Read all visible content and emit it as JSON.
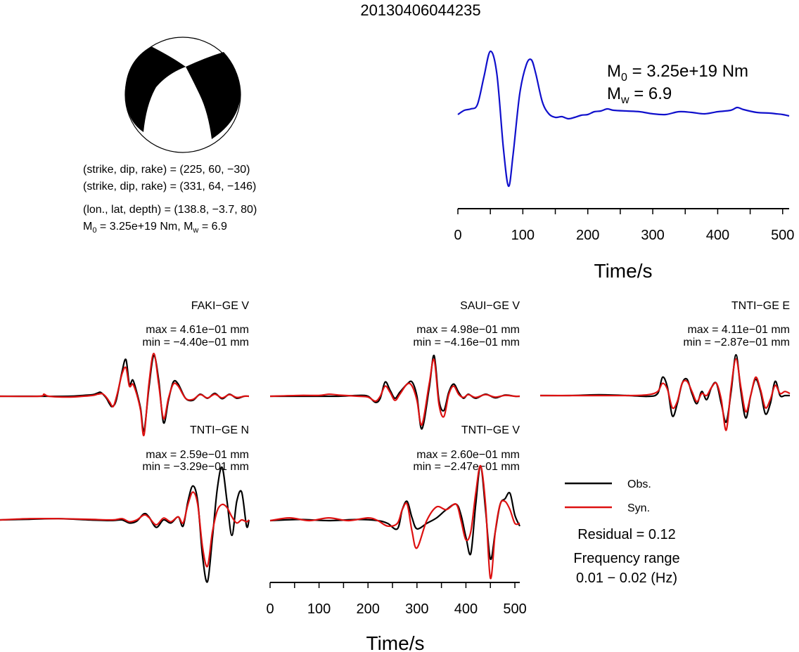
{
  "title": "20130406044235",
  "mechanism": {
    "line1": "(strike, dip, rake) = (225, 60, −30)",
    "line2": "(strike, dip, rake) = (331, 64, −146)",
    "line3": "(lon., lat, depth) = (138.8, −3.7, 80)",
    "line4_prefix": "M",
    "line4_sub0": "0",
    "line4_mid": " = 3.25e+19 Nm, M",
    "line4_subw": "w",
    "line4_suffix": " = 6.9"
  },
  "stf_labels": {
    "m0_main": "M",
    "m0_sub": "0",
    "m0_value": " = 3.25e+19 Nm",
    "mw_main": "M",
    "mw_sub": "w",
    "mw_value": " = 6.9"
  },
  "legend": {
    "obs": "Obs.",
    "syn": "Syn.",
    "residual": "Residual = 0.12",
    "freq_line1": "Frequency range",
    "freq_line2": "0.01 − 0.02 (Hz)"
  },
  "colors": {
    "obs": "#000000",
    "syn": "#dd1111",
    "stf": "#1010cc"
  },
  "chart_data": [
    {
      "type": "line",
      "name": "source-time-function",
      "xlabel": "Time/s",
      "ylabel": "",
      "xlim": [
        0,
        510
      ],
      "xticks": [
        0,
        100,
        200,
        300,
        400,
        500
      ],
      "series": [
        {
          "name": "",
          "color": "#1010cc",
          "x": [
            0,
            10,
            20,
            30,
            40,
            50,
            60,
            70,
            78,
            85,
            95,
            105,
            113,
            120,
            130,
            140,
            150,
            160,
            170,
            180,
            190,
            200,
            210,
            220,
            230,
            240,
            260,
            280,
            300,
            320,
            340,
            360,
            380,
            400,
            420,
            430,
            440,
            460,
            480,
            490,
            500,
            510
          ],
          "y": [
            0.02,
            0.08,
            0.1,
            0.16,
            0.55,
            0.92,
            0.6,
            -0.45,
            -1.0,
            -0.55,
            0.3,
            0.72,
            0.8,
            0.6,
            0.2,
            0.03,
            -0.02,
            -0.01,
            -0.04,
            -0.02,
            0.01,
            0.02,
            0.06,
            0.07,
            0.1,
            0.08,
            0.07,
            0.06,
            0.03,
            0.02,
            0.06,
            0.05,
            0.03,
            0.06,
            0.08,
            0.12,
            0.09,
            0.05,
            0.04,
            0.03,
            0.02,
            0.0
          ]
        }
      ]
    },
    {
      "type": "line",
      "name": "FAKI-GE V",
      "label": "FAKI−GE V",
      "max": "max = 4.61e−01 mm",
      "min": "min = −4.40e−01 mm",
      "xlim": [
        0,
        510
      ],
      "series": [
        {
          "name": "Obs.",
          "x": [
            0,
            80,
            140,
            170,
            190,
            200,
            205,
            210,
            218,
            225,
            230,
            238,
            250,
            258,
            265,
            272,
            280,
            288,
            295,
            305,
            315,
            325,
            335,
            345,
            355,
            365,
            380,
            395,
            410,
            425,
            440,
            455,
            470,
            485,
            500,
            510
          ],
          "y": [
            0.0,
            0.0,
            0.0,
            0.02,
            0.04,
            0.08,
            0.1,
            0.06,
            -0.05,
            -0.2,
            -0.25,
            -0.1,
            0.6,
            0.9,
            0.3,
            0.4,
            0.1,
            -0.3,
            -0.85,
            0.2,
            1.0,
            0.4,
            -0.65,
            -0.1,
            0.35,
            0.3,
            -0.05,
            -0.1,
            0.05,
            -0.05,
            0.07,
            -0.06,
            0.05,
            -0.05,
            0.0,
            0.0
          ]
        },
        {
          "name": "Syn.",
          "x": [
            0,
            80,
            90,
            100,
            140,
            170,
            190,
            200,
            210,
            218,
            225,
            232,
            240,
            250,
            258,
            265,
            272,
            280,
            288,
            295,
            305,
            315,
            325,
            335,
            345,
            355,
            365,
            380,
            395,
            410,
            425,
            440,
            455,
            470,
            485,
            500,
            510
          ],
          "y": [
            0.0,
            0.0,
            0.05,
            0.0,
            -0.02,
            0.0,
            0.02,
            0.05,
            0.06,
            -0.03,
            -0.15,
            -0.25,
            0.05,
            0.55,
            0.7,
            0.25,
            0.3,
            0.05,
            -0.35,
            -0.95,
            0.3,
            1.05,
            0.3,
            -0.55,
            -0.05,
            0.3,
            0.25,
            -0.05,
            -0.08,
            0.04,
            -0.04,
            0.05,
            -0.04,
            0.04,
            -0.03,
            0.0,
            0.0
          ]
        }
      ]
    },
    {
      "type": "line",
      "name": "SAUI-GE V",
      "label": "SAUI−GE V",
      "max": "max = 4.98e−01 mm",
      "min": "min = −4.16e−01 mm",
      "xlim": [
        0,
        510
      ],
      "series": [
        {
          "name": "Obs.",
          "x": [
            0,
            60,
            100,
            140,
            180,
            200,
            215,
            225,
            235,
            245,
            255,
            265,
            280,
            290,
            300,
            310,
            325,
            335,
            345,
            355,
            365,
            375,
            385,
            395,
            405,
            420,
            440,
            460,
            480,
            500,
            510
          ],
          "y": [
            0.0,
            0.0,
            0.0,
            0.0,
            0.02,
            0.0,
            -0.15,
            -0.05,
            0.35,
            0.15,
            -0.05,
            0.1,
            0.3,
            0.35,
            0.0,
            -0.8,
            0.2,
            1.0,
            -0.1,
            -0.35,
            0.1,
            0.3,
            0.1,
            -0.05,
            0.05,
            -0.05,
            0.05,
            -0.04,
            0.03,
            0.0,
            0.0
          ]
        },
        {
          "name": "Syn.",
          "x": [
            0,
            60,
            100,
            120,
            140,
            180,
            200,
            215,
            225,
            235,
            245,
            255,
            265,
            280,
            290,
            300,
            310,
            325,
            335,
            345,
            355,
            365,
            375,
            385,
            395,
            405,
            420,
            440,
            460,
            480,
            500,
            510
          ],
          "y": [
            0.0,
            0.02,
            0.02,
            0.05,
            0.03,
            0.0,
            -0.02,
            -0.12,
            0.0,
            0.25,
            0.1,
            -0.1,
            0.05,
            0.3,
            0.25,
            -0.1,
            -0.7,
            0.3,
            0.9,
            -0.2,
            -0.5,
            0.05,
            0.25,
            0.05,
            -0.03,
            0.04,
            -0.03,
            0.04,
            -0.02,
            0.02,
            0.0,
            0.0
          ]
        }
      ]
    },
    {
      "type": "line",
      "name": "TNTI-GE E",
      "label": "TNTI−GE E",
      "max": "max = 4.11e−01 mm",
      "min": "min = −2.87e−01 mm",
      "xlim": [
        0,
        510
      ],
      "series": [
        {
          "name": "Obs.",
          "x": [
            0,
            60,
            120,
            180,
            220,
            240,
            250,
            260,
            270,
            280,
            290,
            300,
            310,
            320,
            330,
            340,
            350,
            360,
            370,
            380,
            390,
            400,
            410,
            420,
            430,
            440,
            450,
            460,
            470,
            480,
            490,
            500,
            510
          ],
          "y": [
            0.0,
            0.0,
            0.02,
            0.0,
            -0.02,
            0.05,
            0.45,
            0.2,
            -0.5,
            -0.2,
            0.3,
            0.4,
            0.05,
            -0.2,
            0.1,
            -0.1,
            0.2,
            0.3,
            -0.2,
            -0.65,
            0.1,
            1.0,
            0.1,
            -0.55,
            0.0,
            0.4,
            0.1,
            -0.45,
            -0.2,
            0.35,
            0.0,
            0.0,
            0.0
          ]
        },
        {
          "name": "Syn.",
          "x": [
            0,
            60,
            120,
            180,
            220,
            240,
            250,
            260,
            270,
            280,
            290,
            300,
            310,
            320,
            330,
            340,
            350,
            360,
            370,
            380,
            390,
            400,
            410,
            420,
            430,
            440,
            450,
            460,
            470,
            480,
            490,
            500,
            510
          ],
          "y": [
            0.0,
            0.0,
            0.0,
            0.0,
            0.02,
            0.1,
            0.3,
            0.15,
            -0.3,
            -0.15,
            0.3,
            0.35,
            0.1,
            -0.15,
            0.05,
            0.0,
            0.2,
            0.3,
            -0.1,
            -0.85,
            0.2,
            0.9,
            0.2,
            -0.4,
            0.0,
            0.45,
            0.15,
            -0.3,
            -0.1,
            0.25,
            0.05,
            0.1,
            0.05
          ]
        }
      ]
    },
    {
      "type": "line",
      "name": "TNTI-GE N",
      "label": "TNTI−GE N",
      "max": "max = 2.59e−01 mm",
      "min": "min = −3.29e−01 mm",
      "xlim": [
        0,
        510
      ],
      "series": [
        {
          "name": "Obs.",
          "x": [
            0,
            60,
            120,
            180,
            230,
            250,
            265,
            280,
            295,
            305,
            320,
            335,
            350,
            365,
            375,
            385,
            395,
            405,
            415,
            425,
            435,
            445,
            455,
            465,
            475,
            485,
            495,
            505,
            510
          ],
          "y": [
            0.0,
            0.01,
            0.02,
            0.0,
            -0.01,
            0.0,
            -0.05,
            -0.02,
            0.1,
            0.05,
            -0.12,
            0.0,
            -0.05,
            0.05,
            -0.1,
            0.3,
            0.55,
            0.3,
            -0.6,
            -1.0,
            -0.3,
            0.5,
            0.85,
            0.3,
            -0.25,
            0.3,
            0.45,
            -0.1,
            0.0
          ]
        },
        {
          "name": "Syn.",
          "x": [
            0,
            60,
            120,
            180,
            230,
            250,
            265,
            280,
            295,
            305,
            320,
            335,
            350,
            365,
            375,
            385,
            395,
            405,
            415,
            425,
            435,
            445,
            455,
            465,
            475,
            485,
            495,
            505,
            510
          ],
          "y": [
            0.0,
            0.02,
            0.02,
            0.01,
            0.0,
            0.02,
            -0.03,
            0.0,
            0.08,
            0.04,
            -0.08,
            0.03,
            -0.03,
            0.05,
            -0.05,
            0.25,
            0.45,
            0.25,
            -0.45,
            -0.75,
            -0.2,
            0.15,
            0.25,
            0.2,
            0.05,
            -0.05,
            0.0,
            -0.03,
            0.0
          ]
        }
      ]
    },
    {
      "type": "line",
      "name": "TNTI-GE V",
      "label": "TNTI−GE V",
      "max": "max = 2.60e−01 mm",
      "min": "min = −2.47e−01 mm",
      "xlim": [
        0,
        510
      ],
      "xlabel": "Time/s",
      "xticks": [
        0,
        100,
        200,
        300,
        400,
        500
      ],
      "series": [
        {
          "name": "Obs.",
          "x": [
            0,
            60,
            120,
            180,
            220,
            240,
            260,
            270,
            280,
            290,
            300,
            320,
            340,
            360,
            380,
            390,
            400,
            410,
            420,
            430,
            440,
            450,
            460,
            470,
            480,
            490,
            500,
            510
          ],
          "y": [
            0.0,
            0.02,
            0.0,
            0.02,
            0.0,
            -0.05,
            -0.15,
            0.2,
            0.35,
            0.05,
            -0.15,
            -0.05,
            0.05,
            0.2,
            0.3,
            0.1,
            -0.3,
            -0.6,
            0.3,
            1.0,
            0.2,
            -0.7,
            -0.2,
            0.3,
            0.4,
            0.5,
            0.1,
            -0.1
          ]
        },
        {
          "name": "Syn.",
          "x": [
            0,
            40,
            80,
            120,
            160,
            200,
            220,
            240,
            260,
            270,
            280,
            290,
            300,
            320,
            340,
            360,
            380,
            390,
            400,
            410,
            420,
            430,
            440,
            450,
            460,
            470,
            480,
            490,
            500,
            510
          ],
          "y": [
            0.0,
            0.05,
            0.0,
            0.05,
            0.0,
            0.05,
            0.0,
            -0.1,
            -0.05,
            0.2,
            0.3,
            -0.2,
            -0.5,
            0.0,
            0.25,
            0.2,
            0.3,
            0.0,
            -0.35,
            -0.2,
            0.5,
            1.0,
            0.3,
            -1.05,
            -0.2,
            0.3,
            0.35,
            0.2,
            -0.05,
            -0.05
          ]
        }
      ]
    }
  ]
}
